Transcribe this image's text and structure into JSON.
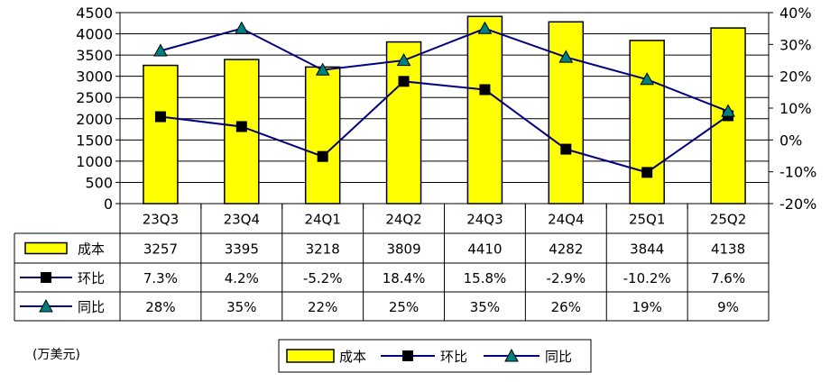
{
  "chart_data": {
    "type": "bar",
    "categories": [
      "23Q3",
      "23Q4",
      "24Q1",
      "24Q2",
      "24Q3",
      "24Q4",
      "25Q1",
      "25Q2"
    ],
    "series": [
      {
        "name": "成本",
        "type": "bar",
        "axis": "left",
        "values": [
          3257,
          3395,
          3218,
          3809,
          4410,
          4282,
          3844,
          4138
        ],
        "labels": [
          "3257",
          "3395",
          "3218",
          "3809",
          "4410",
          "4282",
          "3844",
          "4138"
        ]
      },
      {
        "name": "环比",
        "type": "line",
        "axis": "right",
        "marker": "square",
        "values": [
          7.3,
          4.2,
          -5.2,
          18.4,
          15.8,
          -2.9,
          -10.2,
          7.6
        ],
        "labels": [
          "7.3%",
          "4.2%",
          "-5.2%",
          "18.4%",
          "15.8%",
          "-2.9%",
          "-10.2%",
          "7.6%"
        ]
      },
      {
        "name": "同比",
        "type": "line",
        "axis": "right",
        "marker": "triangle",
        "values": [
          28,
          35,
          22,
          25,
          35,
          26,
          19,
          9
        ],
        "labels": [
          "28%",
          "35%",
          "22%",
          "25%",
          "35%",
          "26%",
          "19%",
          "9%"
        ]
      }
    ],
    "y_left": {
      "range": [
        0,
        4500
      ],
      "ticks": [
        "0",
        "500",
        "1000",
        "1500",
        "2000",
        "2500",
        "3000",
        "3500",
        "4000",
        "4500"
      ]
    },
    "y_right": {
      "range": [
        -20,
        40
      ],
      "ticks": [
        "-20%",
        "-10%",
        "0%",
        "10%",
        "20%",
        "30%",
        "40%"
      ]
    },
    "grid": true,
    "legend": "bottom",
    "data_table": true
  },
  "unit_label": "(万美元)",
  "colors": {
    "bar_fill": "#ffff00",
    "bar_stroke": "#000000",
    "line": "#000080",
    "square_marker": "#000000",
    "triangle_marker": "#008080"
  }
}
